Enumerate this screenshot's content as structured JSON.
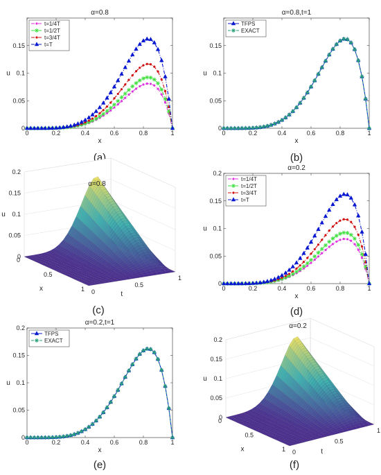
{
  "colors": {
    "magenta": "#e030e0",
    "green": "#40e040",
    "red": "#d01010",
    "blue": "#0818d0",
    "exact": "#2aa07a",
    "surface_low": "#4a2a90",
    "surface_mid": "#40b0b0",
    "surface_high": "#f0e060"
  },
  "x_grid": [
    0,
    0.025,
    0.05,
    0.075,
    0.1,
    0.125,
    0.15,
    0.175,
    0.2,
    0.225,
    0.25,
    0.275,
    0.3,
    0.325,
    0.35,
    0.375,
    0.4,
    0.425,
    0.45,
    0.475,
    0.5,
    0.525,
    0.55,
    0.575,
    0.6,
    0.625,
    0.65,
    0.675,
    0.7,
    0.725,
    0.75,
    0.775,
    0.8,
    0.825,
    0.85,
    0.875,
    0.9,
    0.925,
    0.95,
    0.975,
    1
  ],
  "peak_value": 0.162,
  "chart_data": [
    {
      "type": "line",
      "caption": "(a)",
      "title": "α=0.8",
      "xlabel": "x",
      "ylabel": "u",
      "xlim": [
        0,
        1
      ],
      "ylim": [
        0,
        0.2
      ],
      "xticks": [
        0,
        0.2,
        0.4,
        0.6,
        0.8,
        1
      ],
      "xtick_labels": [
        "0",
        "0.2",
        "0.4",
        "0.6",
        "0.8",
        "1"
      ],
      "yticks": [
        0,
        0.05,
        0.1,
        0.15,
        0.2
      ],
      "ytick_labels": [
        "0",
        "0.05",
        "0.1",
        "0.15",
        ""
      ],
      "legend_position": "top-left",
      "series": [
        {
          "name": "t=1/4T",
          "scale": 0.5,
          "color": "magenta",
          "marker": "dot",
          "dash": "dashdot"
        },
        {
          "name": "t=1/2T",
          "scale": 0.57,
          "color": "green",
          "marker": "star",
          "dash": "dashdot"
        },
        {
          "name": "t=3/4T",
          "scale": 0.72,
          "color": "red",
          "marker": "dot",
          "dash": "dashdot"
        },
        {
          "name": "t=T",
          "scale": 1.0,
          "color": "blue",
          "marker": "triangle",
          "dash": "dashdot"
        }
      ]
    },
    {
      "type": "line",
      "caption": "(b)",
      "title": "α=0.8,t=1",
      "xlabel": "x",
      "ylabel": "u",
      "xlim": [
        0,
        1
      ],
      "ylim": [
        0,
        0.2
      ],
      "xticks": [
        0,
        0.2,
        0.4,
        0.6,
        0.8,
        1
      ],
      "xtick_labels": [
        "0",
        "0.2",
        "0.4",
        "0.6",
        "0.8",
        "1"
      ],
      "yticks": [
        0,
        0.05,
        0.1,
        0.15,
        0.2
      ],
      "ytick_labels": [
        "0",
        "0.05",
        "0.1",
        "0.15",
        ""
      ],
      "legend_position": "top-left",
      "series": [
        {
          "name": "TFPS",
          "scale": 1.0,
          "color": "blue",
          "marker": "triangle",
          "dash": "solid"
        },
        {
          "name": "EXACT",
          "scale": 1.0,
          "color": "exact",
          "marker": "star",
          "dash": "dashed"
        }
      ]
    },
    {
      "type": "surface",
      "caption": "(c)",
      "title": "α=0.8",
      "xlabel": "x",
      "ylabel": "t",
      "zlabel": "u",
      "zticks": [
        0,
        0.05,
        0.1,
        0.15,
        0.2
      ],
      "ztick_labels": [
        "0",
        "0.05",
        "0.1",
        "0.15",
        "0.2"
      ],
      "xticks": [
        0,
        0.5,
        1
      ],
      "xtick_labels": [
        "0",
        "0.5",
        "1"
      ],
      "tticks": [
        0,
        0.5,
        1
      ],
      "ttick_labels": [
        "0",
        "0.5",
        "1"
      ]
    },
    {
      "type": "line",
      "caption": "(d)",
      "title": "α=0.2",
      "xlabel": "x",
      "ylabel": "u",
      "xlim": [
        0,
        1
      ],
      "ylim": [
        0,
        0.2
      ],
      "xticks": [
        0,
        0.2,
        0.4,
        0.6,
        0.8,
        1
      ],
      "xtick_labels": [
        "0",
        "0.2",
        "0.4",
        "0.6",
        "0.8",
        "1"
      ],
      "yticks": [
        0,
        0.05,
        0.1,
        0.15,
        0.2
      ],
      "ytick_labels": [
        "0",
        "0.05",
        "0.1",
        "0.15",
        "0.2"
      ],
      "legend_position": "top-left",
      "series": [
        {
          "name": "t=1/4T",
          "scale": 0.5,
          "color": "magenta",
          "marker": "dot",
          "dash": "dashdot"
        },
        {
          "name": "t=1/2T",
          "scale": 0.57,
          "color": "green",
          "marker": "star",
          "dash": "dashdot"
        },
        {
          "name": "t=3/4T",
          "scale": 0.72,
          "color": "red",
          "marker": "dot",
          "dash": "dashdot"
        },
        {
          "name": "t=T",
          "scale": 1.0,
          "color": "blue",
          "marker": "triangle",
          "dash": "dashdot"
        }
      ]
    },
    {
      "type": "line",
      "caption": "(e)",
      "title": "α=0.2,t=1",
      "xlabel": "x",
      "ylabel": "u",
      "xlim": [
        0,
        1
      ],
      "ylim": [
        0,
        0.2
      ],
      "xticks": [
        0,
        0.2,
        0.4,
        0.6,
        0.8,
        1
      ],
      "xtick_labels": [
        "0",
        "0.2",
        "0.4",
        "0.6",
        "0.8",
        "1"
      ],
      "yticks": [
        0,
        0.05,
        0.1,
        0.15,
        0.2
      ],
      "ytick_labels": [
        "0",
        "0.05",
        "0.1",
        "0.15",
        "0.2"
      ],
      "legend_position": "top-left",
      "series": [
        {
          "name": "TFPS",
          "scale": 1.0,
          "color": "blue",
          "marker": "triangle",
          "dash": "solid"
        },
        {
          "name": "EXACT",
          "scale": 1.0,
          "color": "exact",
          "marker": "star",
          "dash": "dashed"
        }
      ]
    },
    {
      "type": "surface",
      "caption": "(f)",
      "title": "α=0.2",
      "xlabel": "x",
      "ylabel": "t",
      "zlabel": "u",
      "zticks": [
        0,
        0.05,
        0.1,
        0.15,
        0.2
      ],
      "ztick_labels": [
        "0",
        "0.05",
        "0.1",
        "0.15",
        "0.2"
      ],
      "xticks": [
        0,
        0.5,
        1
      ],
      "xtick_labels": [
        "0",
        "0.5",
        "1"
      ],
      "tticks": [
        0,
        0.5,
        1
      ],
      "ttick_labels": [
        "0",
        "0.5",
        "1"
      ]
    }
  ]
}
